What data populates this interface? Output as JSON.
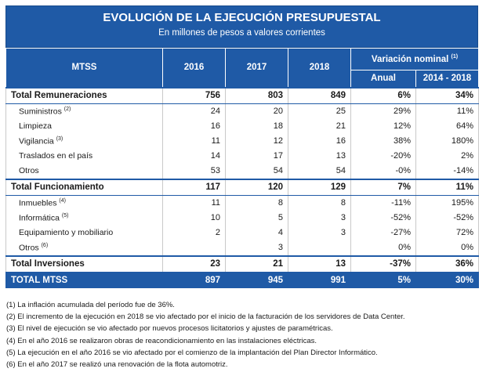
{
  "title": "EVOLUCIÓN DE LA EJECUCIÓN PRESUPUESTAL",
  "subtitle": "En millones de pesos a valores corrientes",
  "headers": {
    "mtss": "MTSS",
    "y2016": "2016",
    "y2017": "2017",
    "y2018": "2018",
    "variacion": "Variación nominal",
    "variacion_sup": "(1)",
    "anual": "Anual",
    "periodo": "2014 - 2018"
  },
  "rows": [
    {
      "label": "Total Remuneraciones",
      "sup": "",
      "v2016": "756",
      "v2017": "803",
      "v2018": "849",
      "anual": "6%",
      "periodo": "34%"
    },
    {
      "label": "Suministros",
      "sup": "(2)",
      "v2016": "24",
      "v2017": "20",
      "v2018": "25",
      "anual": "29%",
      "periodo": "11%"
    },
    {
      "label": "Limpieza",
      "sup": "",
      "v2016": "16",
      "v2017": "18",
      "v2018": "21",
      "anual": "12%",
      "periodo": "64%"
    },
    {
      "label": "Vigilancia",
      "sup": "(3)",
      "v2016": "11",
      "v2017": "12",
      "v2018": "16",
      "anual": "38%",
      "periodo": "180%"
    },
    {
      "label": "Traslados en el país",
      "sup": "",
      "v2016": "14",
      "v2017": "17",
      "v2018": "13",
      "anual": "-20%",
      "periodo": "2%"
    },
    {
      "label": "Otros",
      "sup": "",
      "v2016": "53",
      "v2017": "54",
      "v2018": "54",
      "anual": "-0%",
      "periodo": "-14%"
    },
    {
      "label": "Total Funcionamiento",
      "sup": "",
      "v2016": "117",
      "v2017": "120",
      "v2018": "129",
      "anual": "7%",
      "periodo": "11%"
    },
    {
      "label": "Inmuebles",
      "sup": "(4)",
      "v2016": "11",
      "v2017": "8",
      "v2018": "8",
      "anual": "-11%",
      "periodo": "195%"
    },
    {
      "label": "Informática",
      "sup": "(5)",
      "v2016": "10",
      "v2017": "5",
      "v2018": "3",
      "anual": "-52%",
      "periodo": "-52%"
    },
    {
      "label": "Equipamiento y mobiliario",
      "sup": "",
      "v2016": "2",
      "v2017": "4",
      "v2018": "3",
      "anual": "-27%",
      "periodo": "72%"
    },
    {
      "label": "Otros",
      "sup": "(6)",
      "v2016": "",
      "v2017": "3",
      "v2018": "",
      "anual": "0%",
      "periodo": "0%"
    },
    {
      "label": "Total Inversiones",
      "sup": "",
      "v2016": "23",
      "v2017": "21",
      "v2018": "13",
      "anual": "-37%",
      "periodo": "36%"
    },
    {
      "label": "TOTAL MTSS",
      "sup": "",
      "v2016": "897",
      "v2017": "945",
      "v2018": "991",
      "anual": "5%",
      "periodo": "30%"
    }
  ],
  "notes": [
    "(1) La inflación acumulada del período fue de 36%.",
    "(2) El incremento de la ejecución en 2018 se vio afectado por el inicio de la facturación de los servidores de Data Center.",
    "(3) El nivel de ejecución se vio afectado por nuevos procesos licitatorios y ajustes de paramétricas.",
    "(4) En el año 2016 se realizaron obras de reacondicionamiento en las instalaciones eléctricas.",
    "(5) La ejecución en el año 2016 se vio afectado por el comienzo de la implantación del Plan Director Informático.",
    "(6) En el año 2017 se realizó una renovación de la flota automotriz."
  ]
}
